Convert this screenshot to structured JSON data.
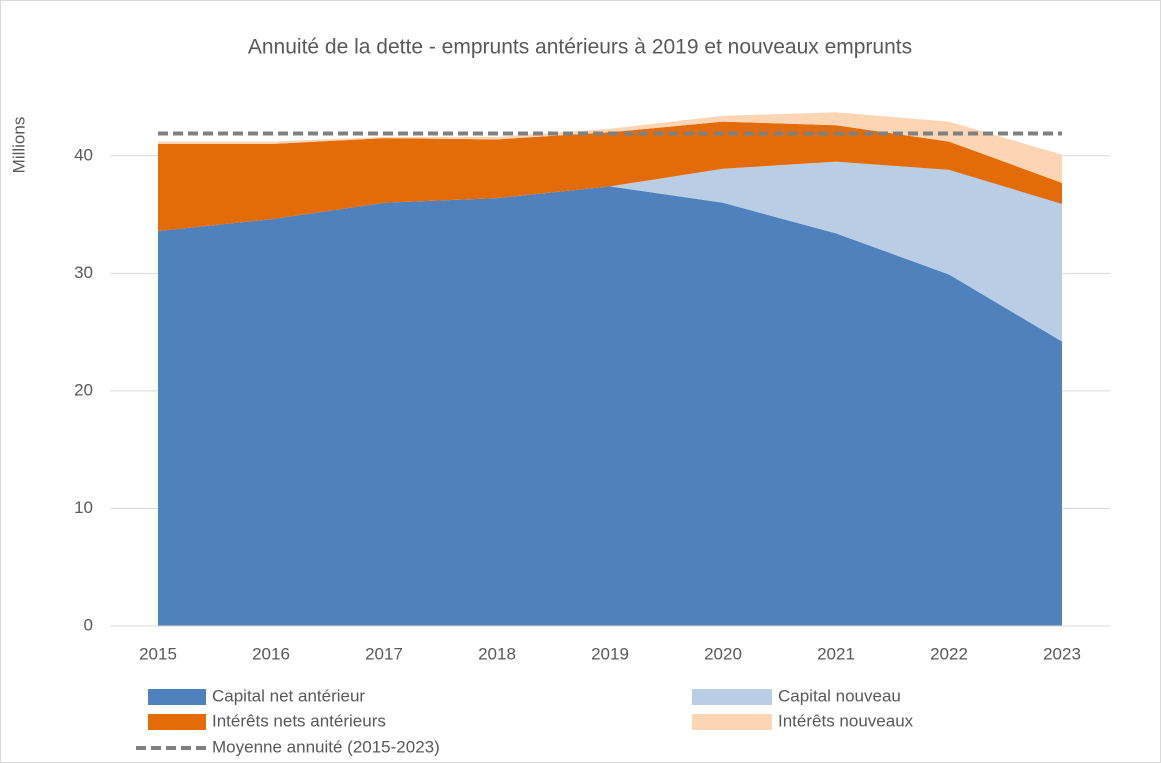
{
  "chart_data": {
    "type": "area",
    "stacked": true,
    "title": "Annuité de la dette - emprunts antérieurs à 2019 et nouveaux emprunts",
    "y_label": "Millions",
    "categories": [
      "2015",
      "2016",
      "2017",
      "2018",
      "2019",
      "2020",
      "2021",
      "2022",
      "2023"
    ],
    "series": [
      {
        "name": "Capital net antérieur",
        "color": "#4f81bd",
        "values": [
          33.6,
          34.6,
          36.0,
          36.4,
          37.4,
          36.0,
          33.4,
          29.9,
          24.2
        ]
      },
      {
        "name": "Capital nouveau",
        "color": "#b9cde5",
        "values": [
          0,
          0,
          0,
          0,
          0,
          2.9,
          6.1,
          8.9,
          11.7
        ]
      },
      {
        "name": "Intérêts nets antérieurs",
        "color": "#e36c09",
        "values": [
          7.4,
          6.4,
          5.5,
          5.0,
          4.6,
          4.0,
          3.1,
          2.4,
          1.8
        ]
      },
      {
        "name": "Intérêts nouveaux",
        "color": "#fcd5b5",
        "values": [
          0.2,
          0.2,
          0.1,
          0.2,
          0.3,
          0.5,
          1.1,
          1.7,
          2.4
        ]
      },
      {
        "name": "Moyenne annuité (2015-2023)",
        "color": "#808080",
        "type": "line",
        "dashed": true,
        "values": [
          41.9,
          41.9,
          41.9,
          41.9,
          41.9,
          41.9,
          41.9,
          41.9,
          41.9
        ]
      }
    ],
    "ylim": [
      0,
      45
    ],
    "yticks": [
      0,
      10,
      20,
      30,
      40
    ],
    "grid": true,
    "legend": "bottom"
  }
}
